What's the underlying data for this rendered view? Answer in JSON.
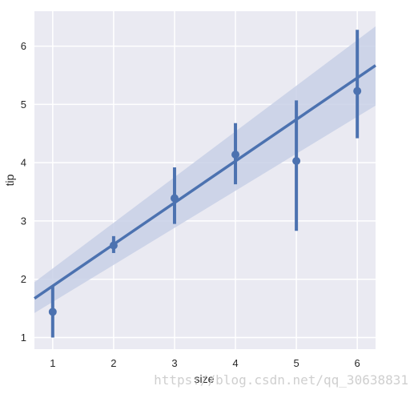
{
  "chart_data": {
    "type": "scatter",
    "xlabel": "size",
    "ylabel": "tip",
    "xlim": [
      0.7,
      6.3
    ],
    "ylim": [
      0.8,
      6.6
    ],
    "xticks": [
      "1",
      "2",
      "3",
      "4",
      "5",
      "6"
    ],
    "yticks": [
      "1",
      "2",
      "3",
      "4",
      "5",
      "6"
    ],
    "grid": true,
    "series": [
      {
        "x": [
          1,
          2,
          3,
          4,
          5,
          6
        ],
        "y": [
          1.44,
          2.58,
          3.39,
          4.14,
          4.03,
          5.23
        ],
        "ci_low": [
          1.0,
          2.45,
          2.95,
          3.63,
          2.83,
          4.42
        ],
        "ci_high": [
          1.88,
          2.74,
          3.92,
          4.68,
          5.07,
          6.28
        ]
      }
    ],
    "regression": {
      "x_range": [
        0.7,
        6.3
      ],
      "y_range": [
        1.67,
        5.67
      ],
      "band_low": [
        1.42,
        4.98
      ],
      "band_high": [
        1.95,
        6.34
      ]
    },
    "colors": {
      "marker": "#4c72b0",
      "band": "#c8d0e6",
      "plot_background": "#eaeaf2",
      "grid": "#ffffff"
    }
  },
  "watermark": "https://blog.csdn.net/qq_30638831"
}
